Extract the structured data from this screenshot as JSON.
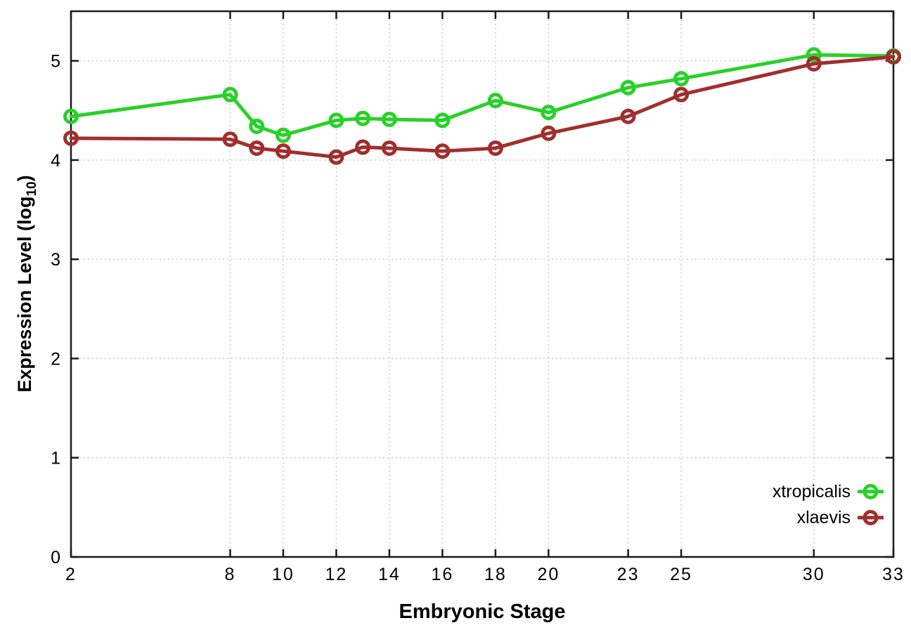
{
  "chart_data": {
    "type": "line",
    "xlabel": "Embryonic Stage",
    "ylabel_main": "Expression Level (log",
    "ylabel_sub": "10",
    "ylabel_close": ")",
    "x": [
      2,
      8,
      9,
      10,
      12,
      13,
      14,
      16,
      18,
      20,
      23,
      25,
      30,
      33
    ],
    "series": [
      {
        "name": "xtropicalis",
        "color": "#28d128",
        "marker": "open-circle",
        "values": [
          4.44,
          4.66,
          4.34,
          4.25,
          4.4,
          4.42,
          4.41,
          4.4,
          4.6,
          4.48,
          4.73,
          4.82,
          5.06,
          5.05
        ]
      },
      {
        "name": "xlaevis",
        "color": "#a12e2e",
        "marker": "open-circle",
        "values": [
          4.22,
          4.21,
          4.12,
          4.09,
          4.03,
          4.13,
          4.12,
          4.09,
          4.12,
          4.27,
          4.44,
          4.66,
          4.97,
          5.04
        ]
      }
    ],
    "x_ticks": [
      2,
      8,
      10,
      12,
      14,
      16,
      18,
      20,
      23,
      25,
      30,
      33
    ],
    "y_ticks": [
      0,
      1,
      2,
      3,
      4,
      5
    ],
    "xlim": [
      2,
      33
    ],
    "ylim": [
      0,
      5.5
    ],
    "grid": true,
    "legend_position": "inside-bottom-right"
  },
  "colors": {
    "grid": "#bdbdbd",
    "axis": "#1a1a1a",
    "text": "#000000",
    "background": "#ffffff"
  }
}
